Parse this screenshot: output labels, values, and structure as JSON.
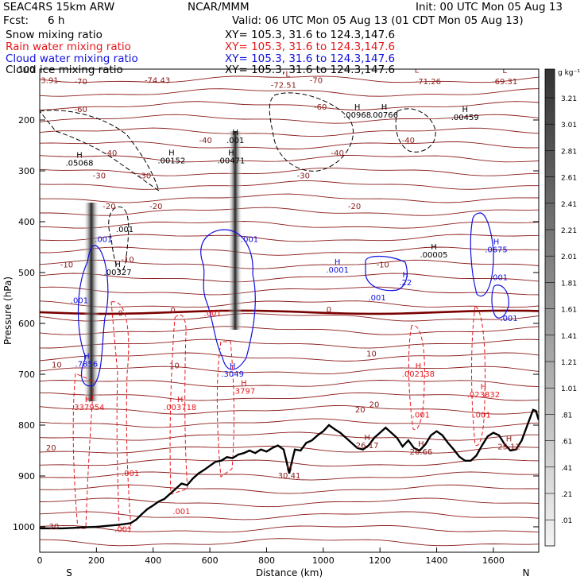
{
  "header": {
    "model": "SEAC4RS 15km ARW",
    "center": "NCAR/MMM",
    "init": "Init: 00 UTC Mon 05 Aug 13",
    "fcst_label": "Fcst:",
    "fcst_value": "6 h",
    "valid": "Valid: 06 UTC Mon 05 Aug 13 (01 CDT Mon 05 Aug 13)",
    "fields": [
      {
        "name": "Snow mixing ratio",
        "xy": "XY= 105.3, 31.6 to 124.3,147.6",
        "color": "#000000"
      },
      {
        "name": "Rain water mixing ratio",
        "xy": "XY= 105.3, 31.6 to 124.3,147.6",
        "color": "#e8161b"
      },
      {
        "name": "Cloud water mixing ratio",
        "xy": "XY= 105.3, 31.6 to 124.3,147.6",
        "color": "#1010e0"
      },
      {
        "name": "Cloud ice mixing ratio",
        "xy": "XY= 105.3, 31.6 to 124.3,147.6",
        "color": "#000000"
      }
    ]
  },
  "chart_data": {
    "type": "cross-section",
    "xlabel": "Distance (km)",
    "ylabel": "Pressure (hPa)",
    "xlim": [
      0,
      1760
    ],
    "ylim": [
      1050,
      100
    ],
    "x_ticks": [
      0,
      200,
      400,
      600,
      800,
      1000,
      1200,
      1400,
      1600
    ],
    "y_ticks": [
      200,
      300,
      400,
      500,
      600,
      700,
      800,
      900,
      1000
    ],
    "y_top_label": "100",
    "x_end_labels": {
      "left": "S",
      "right": "N"
    },
    "colorbar": {
      "unit": "g kg⁻¹",
      "labels": [
        "3.21",
        "3.01",
        "2.81",
        "2.61",
        "2.41",
        "2.21",
        "2.01",
        "1.81",
        "1.61",
        "1.41",
        "1.21",
        "1.01",
        ".81",
        ".61",
        ".41",
        ".21",
        ".01"
      ]
    },
    "temperature_labels": [
      {
        "x": 30,
        "p": 127,
        "text": "-3.91"
      },
      {
        "x": 145,
        "p": 130,
        "text": "-70"
      },
      {
        "x": 415,
        "p": 127,
        "text": "-74.43"
      },
      {
        "x": 975,
        "p": 127,
        "text": "-70"
      },
      {
        "x": 860,
        "p": 137,
        "text": "-72.51"
      },
      {
        "x": 1370,
        "p": 130,
        "text": "-71.26"
      },
      {
        "x": 1640,
        "p": 130,
        "text": "-69.31"
      },
      {
        "x": 145,
        "p": 184,
        "text": "-60"
      },
      {
        "x": 990,
        "p": 180,
        "text": "-60"
      },
      {
        "x": 585,
        "p": 245,
        "text": "-40"
      },
      {
        "x": 1300,
        "p": 245,
        "text": "-40"
      },
      {
        "x": 1050,
        "p": 270,
        "text": "-40"
      },
      {
        "x": 250,
        "p": 270,
        "text": "-40"
      },
      {
        "x": 210,
        "p": 315,
        "text": "-30"
      },
      {
        "x": 370,
        "p": 315,
        "text": "-30"
      },
      {
        "x": 930,
        "p": 315,
        "text": "-30"
      },
      {
        "x": 245,
        "p": 375,
        "text": "-20"
      },
      {
        "x": 410,
        "p": 375,
        "text": "-20"
      },
      {
        "x": 1110,
        "p": 375,
        "text": "-20"
      },
      {
        "x": 95,
        "p": 490,
        "text": "-10"
      },
      {
        "x": 310,
        "p": 480,
        "text": "-10"
      },
      {
        "x": 1210,
        "p": 490,
        "text": "-10"
      },
      {
        "x": 285,
        "p": 585,
        "text": "0"
      },
      {
        "x": 470,
        "p": 580,
        "text": "0"
      },
      {
        "x": 1020,
        "p": 578,
        "text": "0"
      },
      {
        "x": 1170,
        "p": 665,
        "text": "10"
      },
      {
        "x": 60,
        "p": 687,
        "text": "10"
      },
      {
        "x": 475,
        "p": 688,
        "text": "10"
      },
      {
        "x": 1130,
        "p": 775,
        "text": "20"
      },
      {
        "x": 1180,
        "p": 765,
        "text": "20"
      },
      {
        "x": 40,
        "p": 850,
        "text": "20"
      },
      {
        "x": 50,
        "p": 1005,
        "text": "30"
      }
    ],
    "extrema": [
      {
        "x": 140,
        "p": 290,
        "type": "H",
        "value": ".05068",
        "color": "#000000"
      },
      {
        "x": 465,
        "p": 285,
        "type": "H",
        "value": ".00152",
        "color": "#000000"
      },
      {
        "x": 690,
        "p": 245,
        "type": "H",
        "value": ".001",
        "color": "#000000"
      },
      {
        "x": 675,
        "p": 285,
        "type": "H",
        "value": ".00471",
        "color": "#000000"
      },
      {
        "x": 1120,
        "p": 195,
        "type": "H",
        "value": ".00968",
        "color": "#000000"
      },
      {
        "x": 1215,
        "p": 195,
        "type": "H",
        "value": ".00766",
        "color": "#000000"
      },
      {
        "x": 1500,
        "p": 200,
        "type": "H",
        "value": ".00459",
        "color": "#000000"
      },
      {
        "x": 275,
        "p": 505,
        "type": "H",
        "value": ".00327",
        "color": "#000000"
      },
      {
        "x": 1390,
        "p": 470,
        "type": "H",
        "value": ".00005",
        "color": "#000000"
      },
      {
        "x": 1050,
        "p": 500,
        "type": "H",
        "value": ".0001",
        "color": "#1010e0"
      },
      {
        "x": 1290,
        "p": 525,
        "type": "H",
        "value": ".22",
        "color": "#1010e0"
      },
      {
        "x": 1610,
        "p": 460,
        "type": "H",
        "value": ".0675",
        "color": "#1010e0"
      },
      {
        "x": 165,
        "p": 685,
        "type": "H",
        "value": ".7856",
        "color": "#1010e0"
      },
      {
        "x": 680,
        "p": 705,
        "type": "H",
        "value": ".3049",
        "color": "#1010e0"
      },
      {
        "x": 720,
        "p": 738,
        "type": "H",
        "value": ".3797",
        "color": "#e8161b"
      },
      {
        "x": 170,
        "p": 770,
        "type": "H",
        "value": ".337954",
        "color": "#e8161b"
      },
      {
        "x": 495,
        "p": 770,
        "type": "H",
        "value": ".003718",
        "color": "#e8161b"
      },
      {
        "x": 1335,
        "p": 705,
        "type": "H",
        "value": ".002138",
        "color": "#e8161b"
      },
      {
        "x": 1565,
        "p": 745,
        "type": "H",
        "value": ".023832",
        "color": "#e8161b"
      },
      {
        "x": 1155,
        "p": 845,
        "type": "H",
        "value": "26.17",
        "color": "#8b1a1a"
      },
      {
        "x": 1345,
        "p": 858,
        "type": "H",
        "value": "26.66",
        "color": "#8b1a1a"
      },
      {
        "x": 1655,
        "p": 848,
        "type": "H",
        "value": "25.12",
        "color": "#8b1a1a"
      },
      {
        "x": 880,
        "p": 905,
        "type": "H",
        "value": "30.41",
        "color": "#8b1a1a"
      }
    ],
    "value_labels": [
      {
        "x": 300,
        "p": 420,
        "text": ".001",
        "color": "#000000"
      },
      {
        "x": 225,
        "p": 440,
        "text": ".001",
        "color": "#1010e0"
      },
      {
        "x": 740,
        "p": 440,
        "text": ".001",
        "color": "#1010e0"
      },
      {
        "x": 140,
        "p": 560,
        "text": ".001",
        "color": "#1010e0"
      },
      {
        "x": 610,
        "p": 585,
        "text": ".001",
        "color": "#e8161b"
      },
      {
        "x": 1190,
        "p": 555,
        "text": ".001",
        "color": "#1010e0"
      },
      {
        "x": 1620,
        "p": 515,
        "text": ".001",
        "color": "#1010e0"
      },
      {
        "x": 1655,
        "p": 595,
        "text": ".001",
        "color": "#1010e0"
      },
      {
        "x": 1345,
        "p": 785,
        "text": ".001",
        "color": "#e8161b"
      },
      {
        "x": 1560,
        "p": 785,
        "text": ".001",
        "color": "#e8161b"
      },
      {
        "x": 320,
        "p": 900,
        "text": ".001",
        "color": "#e8161b"
      },
      {
        "x": 500,
        "p": 975,
        "text": ".001",
        "color": "#e8161b"
      },
      {
        "x": 295,
        "p": 1010,
        "text": ".001",
        "color": "#e8161b"
      }
    ],
    "low_markers": [
      {
        "x": 875,
        "p": 115,
        "text": "L"
      },
      {
        "x": 1330,
        "p": 107,
        "text": "L"
      },
      {
        "x": 1640,
        "p": 108,
        "text": "L"
      }
    ],
    "terrain": [
      [
        0,
        1003
      ],
      [
        40,
        1003
      ],
      [
        80,
        1003
      ],
      [
        120,
        1002
      ],
      [
        160,
        1001
      ],
      [
        200,
        1000
      ],
      [
        240,
        998
      ],
      [
        280,
        996
      ],
      [
        320,
        993
      ],
      [
        340,
        986
      ],
      [
        360,
        975
      ],
      [
        380,
        965
      ],
      [
        400,
        958
      ],
      [
        420,
        950
      ],
      [
        440,
        945
      ],
      [
        460,
        935
      ],
      [
        480,
        925
      ],
      [
        500,
        915
      ],
      [
        520,
        918
      ],
      [
        540,
        905
      ],
      [
        560,
        895
      ],
      [
        580,
        888
      ],
      [
        600,
        880
      ],
      [
        620,
        872
      ],
      [
        640,
        870
      ],
      [
        660,
        863
      ],
      [
        680,
        865
      ],
      [
        700,
        858
      ],
      [
        720,
        855
      ],
      [
        740,
        850
      ],
      [
        760,
        855
      ],
      [
        780,
        848
      ],
      [
        800,
        852
      ],
      [
        820,
        845
      ],
      [
        840,
        840
      ],
      [
        860,
        848
      ],
      [
        870,
        870
      ],
      [
        880,
        895
      ],
      [
        890,
        870
      ],
      [
        900,
        848
      ],
      [
        920,
        850
      ],
      [
        940,
        835
      ],
      [
        960,
        830
      ],
      [
        980,
        820
      ],
      [
        1000,
        812
      ],
      [
        1020,
        800
      ],
      [
        1040,
        808
      ],
      [
        1060,
        815
      ],
      [
        1080,
        825
      ],
      [
        1100,
        835
      ],
      [
        1120,
        845
      ],
      [
        1140,
        848
      ],
      [
        1160,
        840
      ],
      [
        1180,
        825
      ],
      [
        1200,
        815
      ],
      [
        1220,
        805
      ],
      [
        1240,
        815
      ],
      [
        1260,
        825
      ],
      [
        1280,
        842
      ],
      [
        1300,
        830
      ],
      [
        1320,
        845
      ],
      [
        1340,
        850
      ],
      [
        1360,
        838
      ],
      [
        1380,
        820
      ],
      [
        1400,
        812
      ],
      [
        1420,
        820
      ],
      [
        1440,
        835
      ],
      [
        1460,
        848
      ],
      [
        1480,
        862
      ],
      [
        1500,
        870
      ],
      [
        1520,
        870
      ],
      [
        1540,
        860
      ],
      [
        1560,
        840
      ],
      [
        1580,
        822
      ],
      [
        1600,
        815
      ],
      [
        1620,
        820
      ],
      [
        1640,
        838
      ],
      [
        1660,
        850
      ],
      [
        1680,
        848
      ],
      [
        1700,
        830
      ],
      [
        1720,
        800
      ],
      [
        1740,
        770
      ],
      [
        1750,
        772
      ],
      [
        1760,
        790
      ]
    ]
  }
}
